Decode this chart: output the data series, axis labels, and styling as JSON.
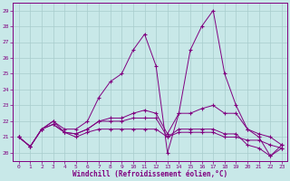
{
  "xlabel": "Windchill (Refroidissement éolien,°C)",
  "xlim": [
    -0.5,
    23.5
  ],
  "ylim": [
    19.5,
    29.5
  ],
  "yticks": [
    20,
    21,
    22,
    23,
    24,
    25,
    26,
    27,
    28,
    29
  ],
  "xticks": [
    0,
    1,
    2,
    3,
    4,
    5,
    6,
    7,
    8,
    9,
    10,
    11,
    12,
    13,
    14,
    15,
    16,
    17,
    18,
    19,
    20,
    21,
    22,
    23
  ],
  "bg_color": "#c8e8e8",
  "line_color": "#800080",
  "grid_color": "#a8cccc",
  "curves": [
    [
      21.0,
      20.4,
      21.5,
      22.0,
      21.5,
      21.5,
      22.0,
      23.5,
      24.5,
      25.0,
      26.5,
      27.5,
      25.5,
      20.0,
      22.5,
      26.5,
      28.0,
      29.0,
      25.0,
      23.0,
      21.5,
      21.0,
      19.8,
      20.5
    ],
    [
      21.0,
      20.4,
      21.5,
      22.0,
      21.3,
      21.2,
      21.5,
      22.0,
      22.2,
      22.2,
      22.5,
      22.7,
      22.5,
      21.2,
      22.5,
      22.5,
      22.8,
      23.0,
      22.5,
      22.5,
      21.5,
      21.2,
      21.0,
      20.5
    ],
    [
      21.0,
      20.4,
      21.5,
      21.8,
      21.3,
      21.0,
      21.3,
      21.5,
      21.5,
      21.5,
      21.5,
      21.5,
      21.5,
      21.0,
      21.3,
      21.3,
      21.3,
      21.3,
      21.0,
      21.0,
      20.8,
      20.8,
      20.5,
      20.3
    ],
    [
      21.0,
      20.4,
      21.5,
      21.8,
      21.3,
      21.2,
      21.5,
      22.0,
      22.0,
      22.0,
      22.2,
      22.2,
      22.2,
      21.0,
      21.5,
      21.5,
      21.5,
      21.5,
      21.2,
      21.2,
      20.5,
      20.3,
      19.8,
      20.3
    ]
  ]
}
